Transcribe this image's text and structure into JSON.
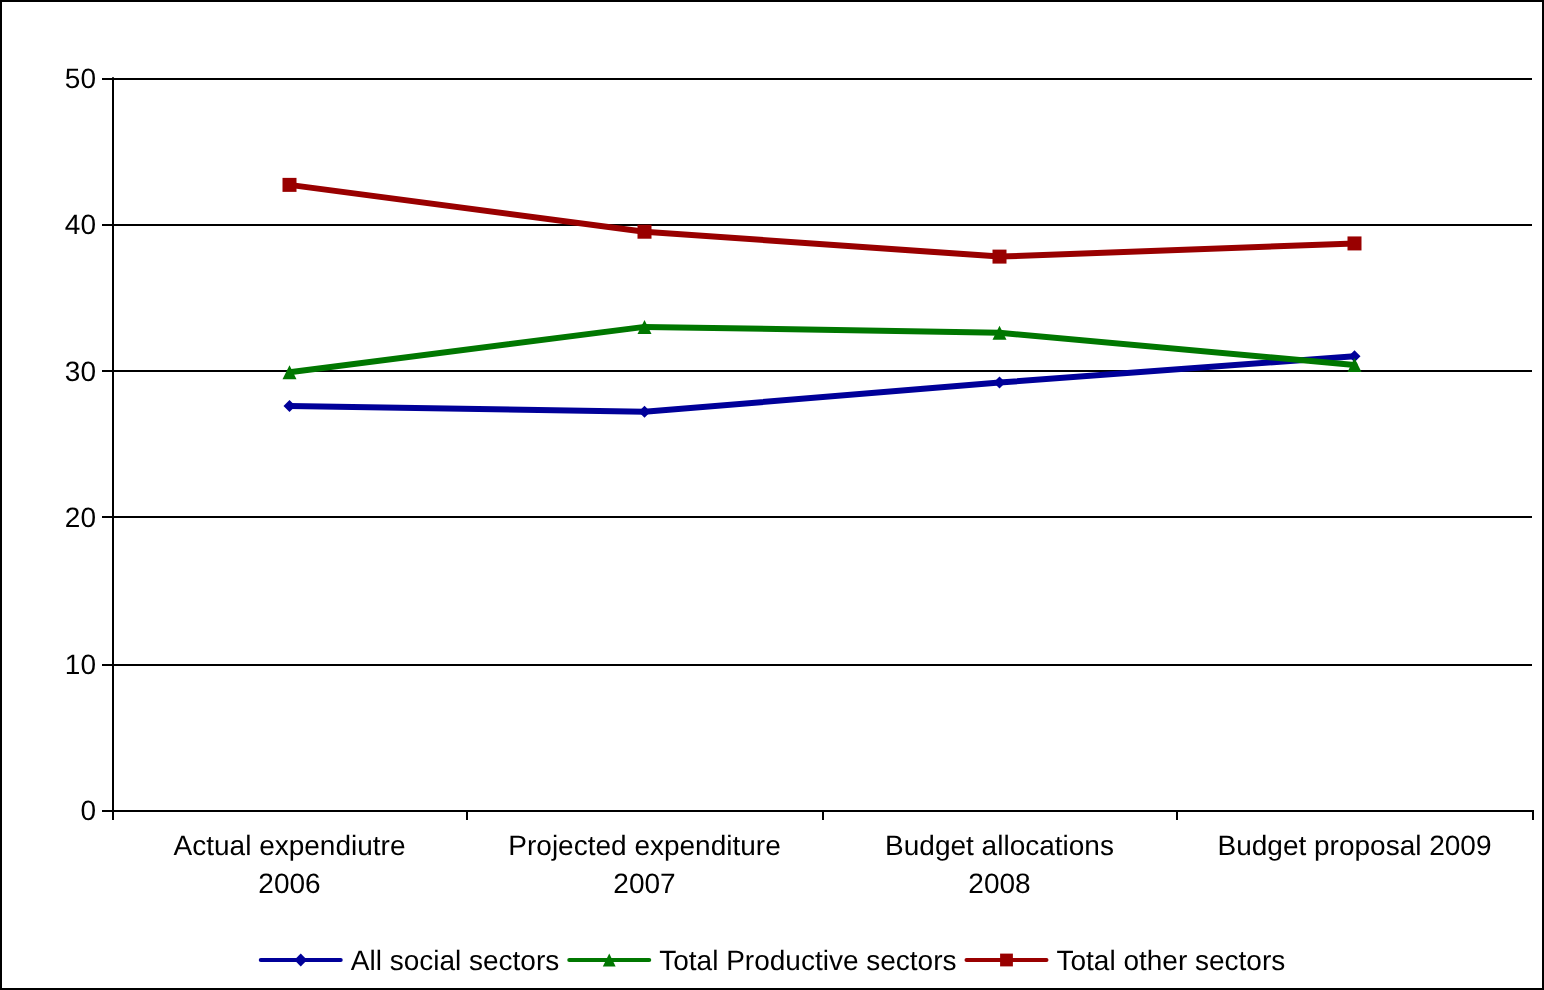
{
  "chart_data": {
    "type": "line",
    "categories": [
      "Actual expendiutre\n2006",
      "Projected expenditure\n2007",
      "Budget allocations\n2008",
      "Budget proposal 2009"
    ],
    "series": [
      {
        "name": "All social sectors",
        "color": "#000099",
        "values": [
          27.6,
          27.2,
          29.2,
          31.0
        ],
        "marker": "diamond"
      },
      {
        "name": "Total Productive sectors",
        "color": "#007700",
        "values": [
          29.9,
          33.0,
          32.6,
          30.4
        ],
        "marker": "triangle"
      },
      {
        "name": "Total other sectors",
        "color": "#990000",
        "values": [
          42.7,
          39.5,
          37.8,
          38.7
        ],
        "marker": "square"
      }
    ],
    "ylim": [
      0,
      50
    ],
    "yticks": [
      0,
      10,
      20,
      30,
      40,
      50
    ],
    "grid": "y",
    "legend": "bottom"
  }
}
